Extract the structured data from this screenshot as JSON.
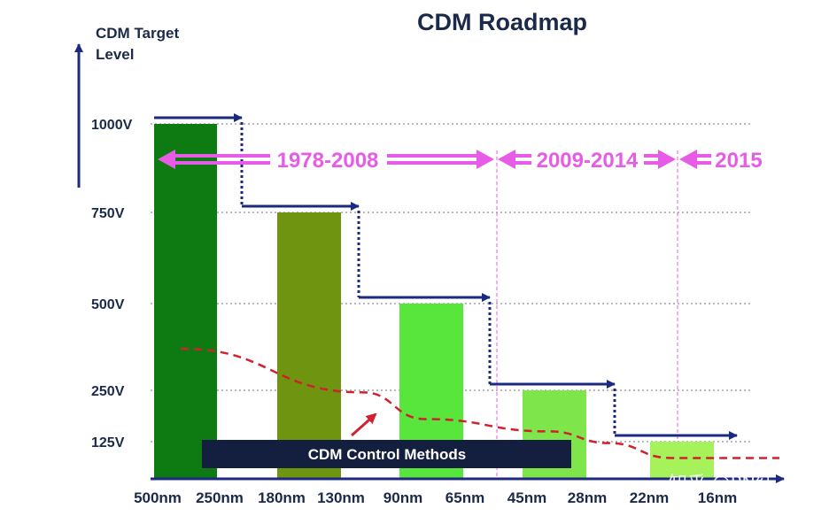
{
  "chart_data": {
    "type": "bar",
    "title": "CDM Roadmap",
    "ylabel": "CDM Target\nLevel",
    "xlabel": "",
    "y_ticks": [
      {
        "value": 1000,
        "label": "1000V"
      },
      {
        "value": 750,
        "label": "750V"
      },
      {
        "value": 500,
        "label": "500V"
      },
      {
        "value": 250,
        "label": "250V"
      },
      {
        "value": 125,
        "label": "125V"
      }
    ],
    "ylim": [
      0,
      1000
    ],
    "grid": "dotted horizontal at tick values",
    "categories": [
      "500nm",
      "250nm",
      "180nm",
      "130nm",
      "90nm",
      "65nm",
      "45nm",
      "28nm",
      "22nm",
      "16nm"
    ],
    "bars": [
      {
        "nodes": [
          "500nm",
          "250nm"
        ],
        "value": 1000,
        "color": "#0d7a12"
      },
      {
        "nodes": [
          "180nm",
          "130nm"
        ],
        "value": 750,
        "color": "#6e9410"
      },
      {
        "nodes": [
          "90nm",
          "65nm"
        ],
        "value": 500,
        "color": "#58e63c"
      },
      {
        "nodes": [
          "45nm",
          "28nm"
        ],
        "value": 250,
        "color": "#7ee64a"
      },
      {
        "nodes": [
          "22nm",
          "16nm"
        ],
        "value": 125,
        "color": "#a6f25a"
      }
    ],
    "step_line": {
      "color": "#1b2a80",
      "levels": [
        1000,
        750,
        500,
        250,
        125
      ]
    },
    "eras": [
      {
        "label": "1978-2008",
        "from_node": "500nm",
        "to_node": "65nm"
      },
      {
        "label": "2009-2014",
        "from_node": "65nm",
        "to_node": "22nm"
      },
      {
        "label": "2015",
        "from_node": "22nm",
        "to_node": "16nm"
      }
    ],
    "era_color": "#e85be6",
    "trend_curve": {
      "label": "CDM Control Methods",
      "color": "#d1202e",
      "style": "dashed",
      "points": [
        {
          "node": "500nm",
          "value": 370
        },
        {
          "node": "130nm",
          "value": 245
        },
        {
          "node": "90nm",
          "value": 180
        },
        {
          "node": "45nm",
          "value": 150
        },
        {
          "node": "28nm",
          "value": 120
        },
        {
          "node": "22nm",
          "value": 70
        },
        {
          "node": "16nm",
          "value": 70
        }
      ]
    },
    "annotation_box": {
      "label": "CDM Control Methods",
      "color": "#141e3f"
    }
  },
  "watermark": "知乎 @PN结"
}
